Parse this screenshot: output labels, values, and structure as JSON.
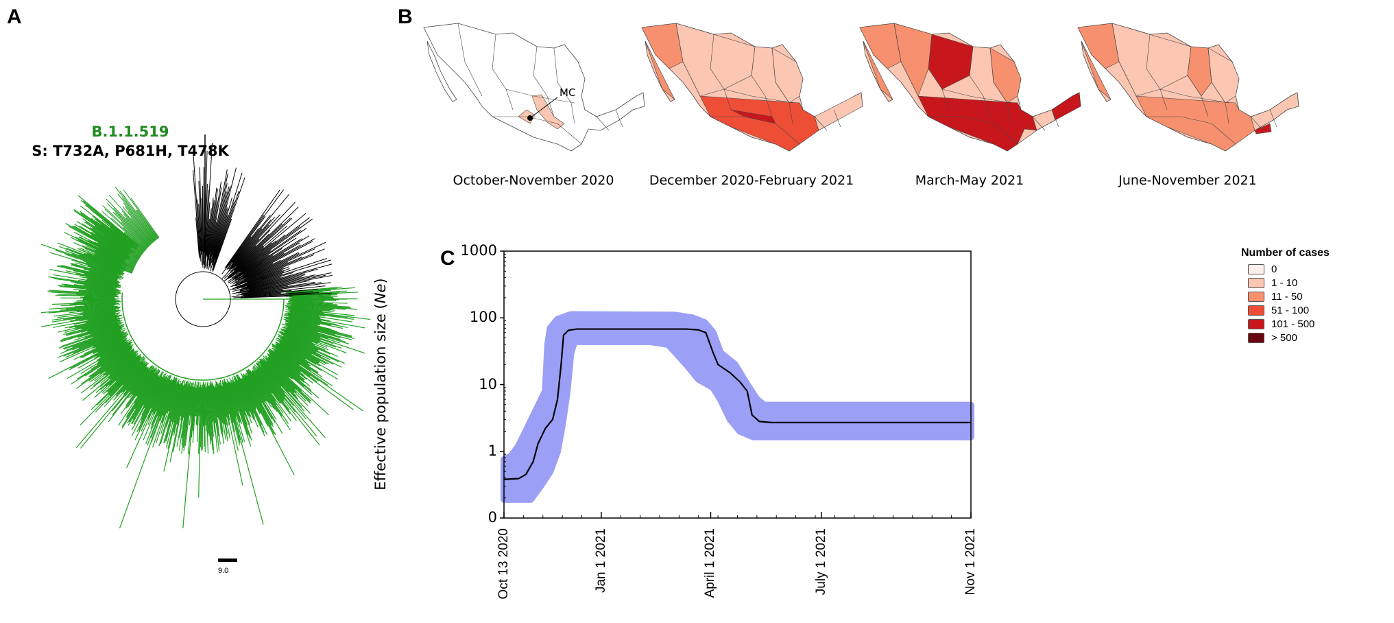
{
  "panels": {
    "a": "A",
    "b": "B",
    "c": "C"
  },
  "tree": {
    "lineage": "B.1.1.519",
    "mutations": "S: T732A, P681H, T478K",
    "scale_label": "9.0",
    "colors": {
      "lineage": "#22a022",
      "other": "#000000"
    }
  },
  "maps": {
    "annotation": "MC",
    "periods": [
      {
        "title": "October-November 2020",
        "level": 0
      },
      {
        "title": "December 2020-February 2021",
        "level": 1
      },
      {
        "title": "March-May 2021",
        "level": 2
      },
      {
        "title": "June-November 2021",
        "level": 3
      }
    ]
  },
  "legend": {
    "title": "Number of cases",
    "items": [
      {
        "label": "0",
        "color": "#fdf0eb"
      },
      {
        "label": "1 - 10",
        "color": "#fbc6b2"
      },
      {
        "label": "11 - 50",
        "color": "#f6906f"
      },
      {
        "label": "51 - 100",
        "color": "#ef4e36"
      },
      {
        "label": "101 - 500",
        "color": "#c8171c"
      },
      {
        "label": "> 500",
        "color": "#6b0710"
      }
    ]
  },
  "chart_data": {
    "type": "line",
    "title": "",
    "ylabel_prefix": "Effective population size (",
    "ylabel_italic": "Ne",
    "ylabel_suffix": ")",
    "yscale": "log",
    "ylim": [
      0.1,
      1000
    ],
    "yticks": [
      {
        "value": 1000,
        "label": "1000"
      },
      {
        "value": 100,
        "label": "100"
      },
      {
        "value": 10,
        "label": "10"
      },
      {
        "value": 1,
        "label": "1"
      },
      {
        "value": 0.1,
        "label": "0"
      }
    ],
    "x_unit": "days since Oct 13 2020",
    "xlim": [
      0,
      384
    ],
    "xticks": [
      {
        "value": 0,
        "label": "Oct 13 2020"
      },
      {
        "value": 80,
        "label": "Jan 1 2021"
      },
      {
        "value": 170,
        "label": "April 1 2021"
      },
      {
        "value": 261,
        "label": "July 1 2021"
      },
      {
        "value": 384,
        "label": "Nov 1 2021"
      }
    ],
    "median": [
      [
        0,
        0.38
      ],
      [
        12,
        0.39
      ],
      [
        18,
        0.45
      ],
      [
        24,
        0.7
      ],
      [
        28,
        1.3
      ],
      [
        34,
        2.2
      ],
      [
        40,
        3
      ],
      [
        44,
        6
      ],
      [
        47,
        20
      ],
      [
        49,
        55
      ],
      [
        53,
        65
      ],
      [
        60,
        68
      ],
      [
        150,
        68
      ],
      [
        160,
        66
      ],
      [
        166,
        60
      ],
      [
        172,
        30
      ],
      [
        176,
        20
      ],
      [
        186,
        15
      ],
      [
        194,
        11
      ],
      [
        200,
        8
      ],
      [
        204,
        3.5
      ],
      [
        210,
        2.8
      ],
      [
        220,
        2.7
      ],
      [
        384,
        2.7
      ]
    ],
    "upper": [
      [
        0,
        0.75
      ],
      [
        6,
        0.85
      ],
      [
        12,
        1.2
      ],
      [
        18,
        2
      ],
      [
        26,
        4
      ],
      [
        34,
        8
      ],
      [
        36,
        40
      ],
      [
        38,
        70
      ],
      [
        44,
        95
      ],
      [
        55,
        112
      ],
      [
        140,
        110
      ],
      [
        155,
        100
      ],
      [
        165,
        85
      ],
      [
        172,
        60
      ],
      [
        178,
        30
      ],
      [
        190,
        20
      ],
      [
        200,
        10
      ],
      [
        208,
        6
      ],
      [
        214,
        4.9
      ],
      [
        384,
        4.9
      ]
    ],
    "lower": [
      [
        0,
        0.19
      ],
      [
        22,
        0.19
      ],
      [
        30,
        0.3
      ],
      [
        38,
        0.5
      ],
      [
        44,
        1
      ],
      [
        48,
        2.5
      ],
      [
        52,
        8
      ],
      [
        55,
        30
      ],
      [
        58,
        44
      ],
      [
        120,
        44
      ],
      [
        135,
        40
      ],
      [
        150,
        20
      ],
      [
        160,
        12
      ],
      [
        172,
        9
      ],
      [
        178,
        6
      ],
      [
        186,
        3
      ],
      [
        194,
        2
      ],
      [
        205,
        1.65
      ],
      [
        384,
        1.65
      ]
    ],
    "colors": {
      "band": "#9b9ff5",
      "line": "#000000"
    }
  }
}
